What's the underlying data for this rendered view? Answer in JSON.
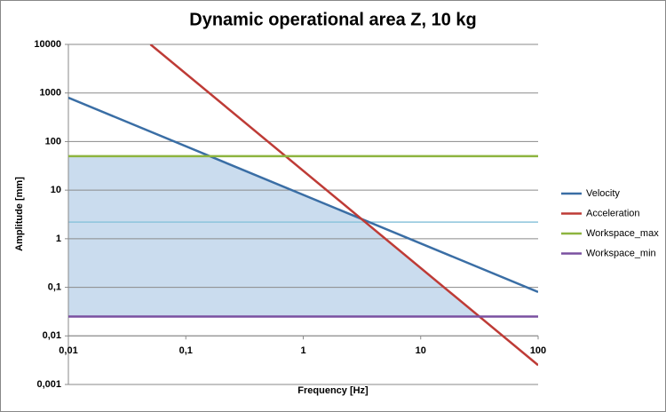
{
  "chart_data": {
    "type": "line",
    "title": "Dynamic operational area Z, 10 kg",
    "x_label": "Frequency [Hz]",
    "y_label": "Amplitude [mm]",
    "log_x": true,
    "log_y": true,
    "grid": true,
    "legend": "right",
    "xlim": [
      0.01,
      100
    ],
    "ylim": [
      0.001,
      10000
    ],
    "x_axis_crosses": 0.01,
    "xticks": [
      {
        "value": 0.01,
        "label": "0,01"
      },
      {
        "value": 0.1,
        "label": "0,1"
      },
      1,
      10,
      100
    ],
    "yticks": [
      {
        "value": 0.001,
        "label": "0,001"
      },
      {
        "value": 0.01,
        "label": "0,01"
      },
      {
        "value": 0.1,
        "label": "0,1"
      },
      1,
      10,
      100,
      1000,
      10000
    ],
    "reference_lines": [
      {
        "value": 2.2,
        "color": "#8cc4dc"
      }
    ],
    "area_color": "#cadcee",
    "series": [
      {
        "name": "Velocity",
        "color": "#3a6ea5",
        "x": [
          0.01,
          100
        ],
        "values": [
          800,
          0.08
        ]
      },
      {
        "name": "Acceleration",
        "color": "#be3b36",
        "x": [
          0.05,
          100
        ],
        "values": [
          10000,
          0.0025
        ]
      },
      {
        "name": "Workspace_max",
        "color": "#8db43f",
        "x": [
          0.01,
          100
        ],
        "values": [
          50,
          50
        ]
      },
      {
        "name": "Workspace_min",
        "color": "#7a50a0",
        "x": [
          0.01,
          100
        ],
        "values": [
          0.025,
          0.025
        ]
      }
    ]
  }
}
